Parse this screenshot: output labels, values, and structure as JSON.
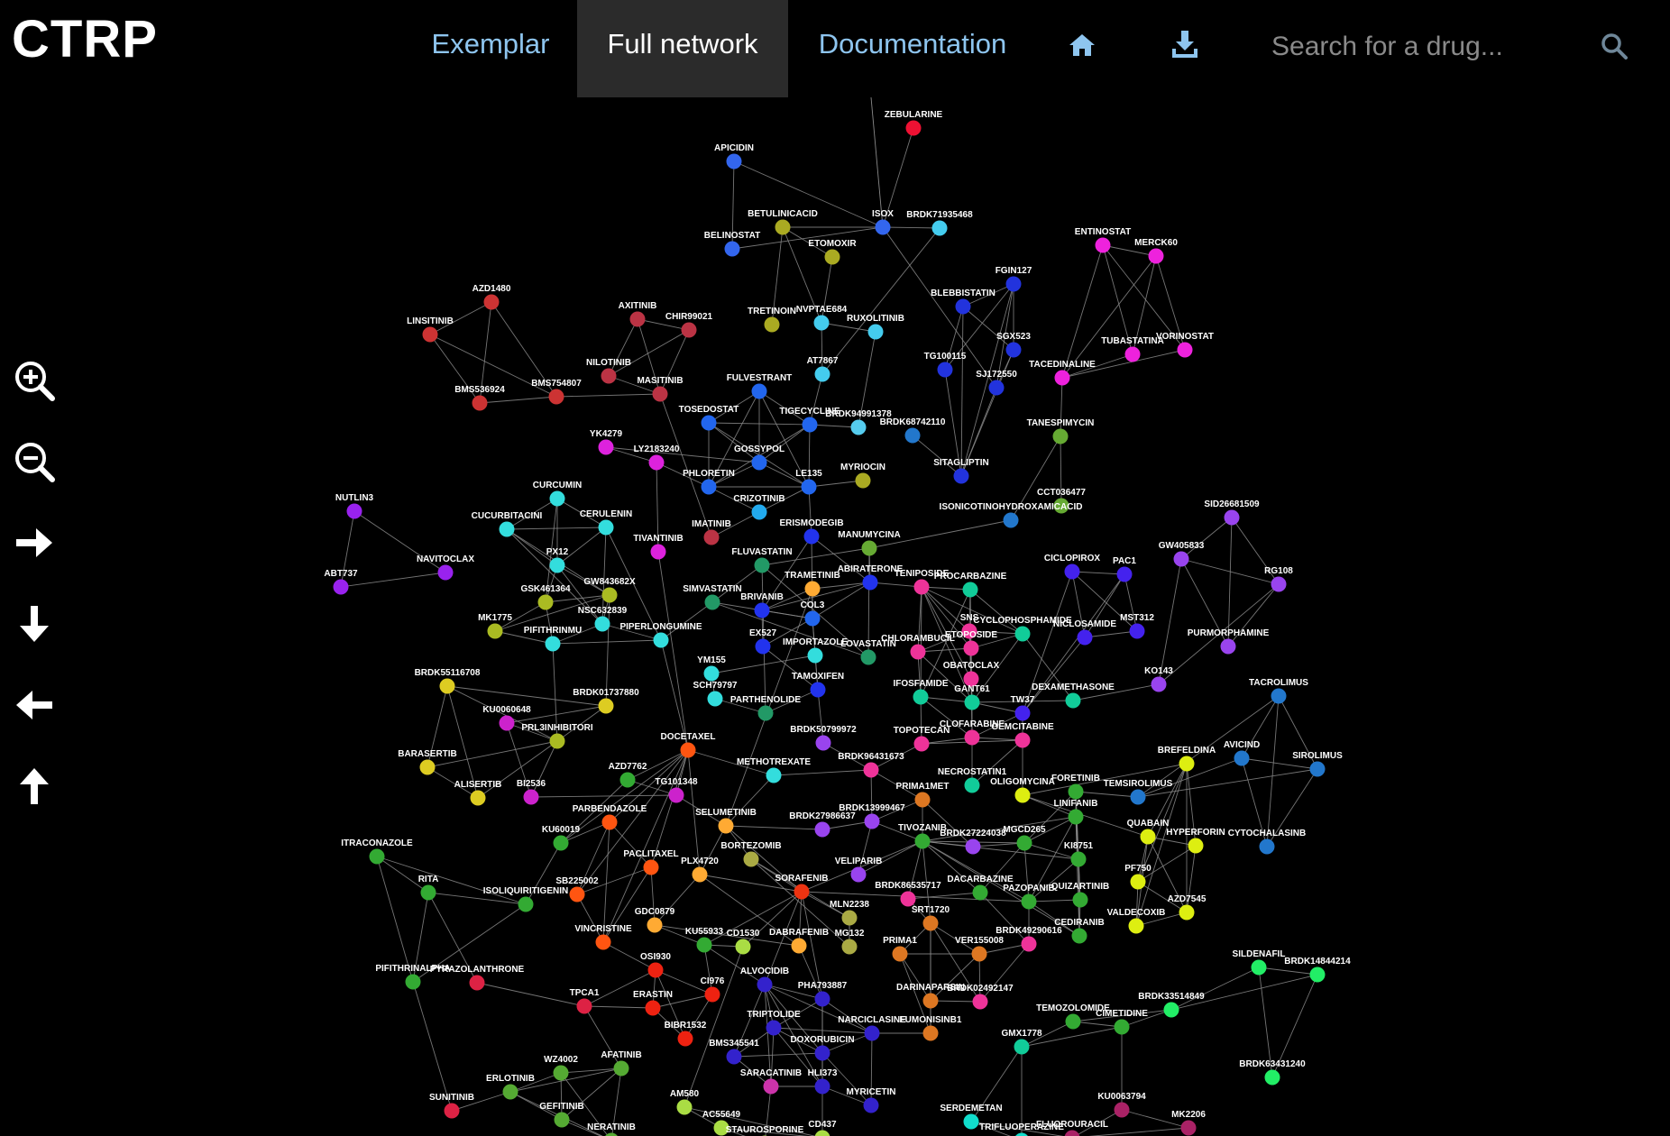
{
  "app": {
    "title": "CTRP"
  },
  "nav": {
    "exemplar": "Exemplar",
    "full_network": "Full network",
    "documentation": "Documentation"
  },
  "search": {
    "placeholder": "Search for a drug..."
  },
  "icons": {
    "home": "home-icon",
    "download": "download-icon",
    "search": "search-icon",
    "zoom_in": "zoom-in-icon",
    "zoom_out": "zoom-out-icon",
    "pan_right": "arrow-right-icon",
    "pan_down": "arrow-down-icon",
    "pan_left": "arrow-left-icon",
    "pan_up": "arrow-up-icon"
  },
  "colors": {
    "link": "#8ec5ef",
    "active_tab_bg": "#2b2b2b",
    "edge": "#8a8a8a"
  },
  "network": {
    "nodes": [
      {
        "id": "ZEBULARINE",
        "color": "#ee1133"
      },
      {
        "id": "APICIDIN",
        "color": "#3366ee"
      },
      {
        "id": "BETULINICACID",
        "color": "#aaaa22"
      },
      {
        "id": "ISOX",
        "color": "#3366ee"
      },
      {
        "id": "BRDK71935468",
        "color": "#44ccee"
      },
      {
        "id": "BELINOSTAT",
        "color": "#3366ee"
      },
      {
        "id": "ETOMOXIR",
        "color": "#aaaa22"
      },
      {
        "id": "ENTINOSTAT",
        "color": "#ee22dd"
      },
      {
        "id": "MERCK60",
        "color": "#ee22dd"
      },
      {
        "id": "AZD1480",
        "color": "#cc3333"
      },
      {
        "id": "LINSITINIB",
        "color": "#cc3333"
      },
      {
        "id": "BMS536924",
        "color": "#cc3333"
      },
      {
        "id": "BMS754807",
        "color": "#cc3333"
      },
      {
        "id": "AXITINIB",
        "color": "#bb3344"
      },
      {
        "id": "CHIR99021",
        "color": "#bb3344"
      },
      {
        "id": "NILOTINIB",
        "color": "#bb3344"
      },
      {
        "id": "MASITINIB",
        "color": "#bb3344"
      },
      {
        "id": "TRETINOIN",
        "color": "#aaaa22"
      },
      {
        "id": "NVPTAE684",
        "color": "#44ccee"
      },
      {
        "id": "RUXOLITINIB",
        "color": "#44ccee"
      },
      {
        "id": "FGIN127",
        "color": "#2233dd"
      },
      {
        "id": "BLEBBISTATIN",
        "color": "#2233dd"
      },
      {
        "id": "SGX523",
        "color": "#2233dd"
      },
      {
        "id": "TG100115",
        "color": "#2233dd"
      },
      {
        "id": "SJ172550",
        "color": "#2233dd"
      },
      {
        "id": "TUBASTATINA",
        "color": "#ee22dd"
      },
      {
        "id": "VORINOSTAT",
        "color": "#ee22dd"
      },
      {
        "id": "TACEDINALINE",
        "color": "#ee22dd"
      },
      {
        "id": "AT7867",
        "color": "#44ccee"
      },
      {
        "id": "FULVESTRANT",
        "color": "#2266ee"
      },
      {
        "id": "TOSEDOSTAT",
        "color": "#2266ee"
      },
      {
        "id": "TIGECYCLINE",
        "color": "#2266ee"
      },
      {
        "id": "BRDK94991378",
        "color": "#55ccee"
      },
      {
        "id": "BRDK68742110",
        "color": "#2277cc"
      },
      {
        "id": "TANESPIMYCIN",
        "color": "#66aa33"
      },
      {
        "id": "YK4279",
        "color": "#dd22dd"
      },
      {
        "id": "LY2183240",
        "color": "#dd22dd"
      },
      {
        "id": "GOSSYPOL",
        "color": "#2266ee"
      },
      {
        "id": "PHLORETIN",
        "color": "#2266ee"
      },
      {
        "id": "LE135",
        "color": "#2266ee"
      },
      {
        "id": "MYRIOCIN",
        "color": "#aaaa22"
      },
      {
        "id": "SITAGLIPTIN",
        "color": "#2233dd"
      },
      {
        "id": "CCT036477",
        "color": "#66aa33"
      },
      {
        "id": "ISONICOTINOHYDROXAMICACID",
        "color": "#2277cc"
      },
      {
        "id": "SID26681509",
        "color": "#9944ee"
      },
      {
        "id": "NUTLIN3",
        "color": "#9922ee"
      },
      {
        "id": "CURCUMIN",
        "color": "#33dddd"
      },
      {
        "id": "CUCURBITACINI",
        "color": "#33dddd"
      },
      {
        "id": "CERULENIN",
        "color": "#33dddd"
      },
      {
        "id": "CRIZOTINIB",
        "color": "#22aaee"
      },
      {
        "id": "IMATINIB",
        "color": "#bb3344"
      },
      {
        "id": "TIVANTINIB",
        "color": "#dd22dd"
      },
      {
        "id": "ERISMODEGIB",
        "color": "#2233ee"
      },
      {
        "id": "MANUMYCINA",
        "color": "#66aa33"
      },
      {
        "id": "GW405833",
        "color": "#9944ee"
      },
      {
        "id": "RG108",
        "color": "#9944ee"
      },
      {
        "id": "NAVITOCLAX",
        "color": "#9922ee"
      },
      {
        "id": "ABT737",
        "color": "#9922ee"
      },
      {
        "id": "PX12",
        "color": "#33dddd"
      },
      {
        "id": "FLUVASTATIN",
        "color": "#229966"
      },
      {
        "id": "ABIRATERONE",
        "color": "#2233ee"
      },
      {
        "id": "TRAMETINIB",
        "color": "#ffaa33"
      },
      {
        "id": "TENIPOSIDE",
        "color": "#ee3399"
      },
      {
        "id": "PROCARBAZINE",
        "color": "#11cc99"
      },
      {
        "id": "CICLOPIROX",
        "color": "#4422ee"
      },
      {
        "id": "PAC1",
        "color": "#4422ee"
      },
      {
        "id": "GSK461364",
        "color": "#aabb22"
      },
      {
        "id": "GW843682X",
        "color": "#aabb22"
      },
      {
        "id": "NSC632839",
        "color": "#33dddd"
      },
      {
        "id": "SIMVASTATIN",
        "color": "#229966"
      },
      {
        "id": "BRIVANIB",
        "color": "#2233ee"
      },
      {
        "id": "COL3",
        "color": "#2266ee"
      },
      {
        "id": "SNS",
        "color": "#ee3399"
      },
      {
        "id": "CYCLOPHOSPHAMIDE",
        "color": "#11cc99"
      },
      {
        "id": "NICLOSAMIDE",
        "color": "#4422ee"
      },
      {
        "id": "MST312",
        "color": "#4422ee"
      },
      {
        "id": "MK1775",
        "color": "#aabb22"
      },
      {
        "id": "PIFITHRINMU",
        "color": "#33dddd"
      },
      {
        "id": "PIPERLONGUMINE",
        "color": "#33dddd"
      },
      {
        "id": "EX527",
        "color": "#2233ee"
      },
      {
        "id": "IMPORTAZOLE",
        "color": "#33dddd"
      },
      {
        "id": "LOVASTATIN",
        "color": "#229966"
      },
      {
        "id": "CHLORAMBUCIL",
        "color": "#ee3399"
      },
      {
        "id": "ETOPOSIDE",
        "color": "#ee3399"
      },
      {
        "id": "PURMORPHAMINE",
        "color": "#9944ee"
      },
      {
        "id": "BRDK55116708",
        "color": "#ddcc22"
      },
      {
        "id": "YM155",
        "color": "#33dddd"
      },
      {
        "id": "KO143",
        "color": "#9944ee"
      },
      {
        "id": "TACROLIMUS",
        "color": "#2277cc"
      },
      {
        "id": "SCH79797",
        "color": "#33dddd"
      },
      {
        "id": "TAMOXIFEN",
        "color": "#2233ee"
      },
      {
        "id": "OBATOCLAX",
        "color": "#ee3399"
      },
      {
        "id": "DEXAMETHASONE",
        "color": "#11cc99"
      },
      {
        "id": "BRDK01737880",
        "color": "#ddcc22"
      },
      {
        "id": "KU0060648",
        "color": "#cc22cc"
      },
      {
        "id": "PARTHENOLIDE",
        "color": "#229966"
      },
      {
        "id": "IFOSFAMIDE",
        "color": "#11cc99"
      },
      {
        "id": "GANT61",
        "color": "#11cc99"
      },
      {
        "id": "TW37",
        "color": "#4422ee"
      },
      {
        "id": "PRL3INHIBITORI",
        "color": "#aabb22"
      },
      {
        "id": "BRDK50799972",
        "color": "#9944ee"
      },
      {
        "id": "TOPOTECAN",
        "color": "#ee3399"
      },
      {
        "id": "CLOFARABINE",
        "color": "#ee3399"
      },
      {
        "id": "GEMCITABINE",
        "color": "#ee3399"
      },
      {
        "id": "DOCETAXEL",
        "color": "#ff5511"
      },
      {
        "id": "BREFELDINA",
        "color": "#ddee11"
      },
      {
        "id": "AVICIND",
        "color": "#2277cc"
      },
      {
        "id": "SIROLIMUS",
        "color": "#2277cc"
      },
      {
        "id": "BARASERTIB",
        "color": "#ddcc22"
      },
      {
        "id": "BRDK96431673",
        "color": "#ee3399"
      },
      {
        "id": "AZD7762",
        "color": "#33aa33"
      },
      {
        "id": "METHOTREXATE",
        "color": "#33dddd"
      },
      {
        "id": "NECROSTATIN1",
        "color": "#11cc99"
      },
      {
        "id": "FORETINIB",
        "color": "#33aa33"
      },
      {
        "id": "ALISERTIB",
        "color": "#ddcc22"
      },
      {
        "id": "BI2536",
        "color": "#cc22cc"
      },
      {
        "id": "TG101348",
        "color": "#cc22cc"
      },
      {
        "id": "OLIGOMYCINA",
        "color": "#ddee11"
      },
      {
        "id": "PRIMA1MET",
        "color": "#dd7722"
      },
      {
        "id": "TEMSIROLIMUS",
        "color": "#2277cc"
      },
      {
        "id": "LINIFANIB",
        "color": "#33aa33"
      },
      {
        "id": "PARBENDAZOLE",
        "color": "#ff5511"
      },
      {
        "id": "BRDK13999467",
        "color": "#9944ee"
      },
      {
        "id": "SELUMETINIB",
        "color": "#ffaa33"
      },
      {
        "id": "BRDK27986637",
        "color": "#9944ee"
      },
      {
        "id": "QUABAIN",
        "color": "#ddee11"
      },
      {
        "id": "HYPERFORIN",
        "color": "#ddee11"
      },
      {
        "id": "KU60019",
        "color": "#33aa33"
      },
      {
        "id": "TIVOZANIB",
        "color": "#33aa33"
      },
      {
        "id": "BRDK27224038",
        "color": "#9944ee"
      },
      {
        "id": "MGCD265",
        "color": "#33aa33"
      },
      {
        "id": "ITRACONAZOLE",
        "color": "#33aa33"
      },
      {
        "id": "BORTEZOMIB",
        "color": "#aaaa44"
      },
      {
        "id": "KI8751",
        "color": "#33aa33"
      },
      {
        "id": "CYTOCHALASINB",
        "color": "#2277cc"
      },
      {
        "id": "PACLITAXEL",
        "color": "#ff5511"
      },
      {
        "id": "PLX4720",
        "color": "#ffaa33"
      },
      {
        "id": "VELIPARIB",
        "color": "#9944ee"
      },
      {
        "id": "PF750",
        "color": "#ddee11"
      },
      {
        "id": "RITA",
        "color": "#33aa33"
      },
      {
        "id": "SB225002",
        "color": "#ff5511"
      },
      {
        "id": "SORAFENIB",
        "color": "#ee3311"
      },
      {
        "id": "DACARBAZINE",
        "color": "#33aa33"
      },
      {
        "id": "ISOLIQUIRITIGENIN",
        "color": "#33aa33"
      },
      {
        "id": "BRDK86535717",
        "color": "#ee3399"
      },
      {
        "id": "PAZOPANIB",
        "color": "#33aa33"
      },
      {
        "id": "QUIZARTINIB",
        "color": "#33aa33"
      },
      {
        "id": "AZD7545",
        "color": "#ddee11"
      },
      {
        "id": "MLN2238",
        "color": "#aaaa44"
      },
      {
        "id": "SRT1720",
        "color": "#dd7722"
      },
      {
        "id": "VALDECOXIB",
        "color": "#ddee11"
      },
      {
        "id": "GDC0879",
        "color": "#ffaa33"
      },
      {
        "id": "BRDK49290616",
        "color": "#ee3399"
      },
      {
        "id": "CEDIRANIB",
        "color": "#33aa33"
      },
      {
        "id": "VINCRISTINE",
        "color": "#ff5511"
      },
      {
        "id": "KU55933",
        "color": "#33aa33"
      },
      {
        "id": "CD1530",
        "color": "#aadd44"
      },
      {
        "id": "DABRAFENIB",
        "color": "#ffaa33"
      },
      {
        "id": "MG132",
        "color": "#aaaa44"
      },
      {
        "id": "PRIMA1",
        "color": "#dd7722"
      },
      {
        "id": "VER155008",
        "color": "#dd7722"
      },
      {
        "id": "OSI930",
        "color": "#ee2211"
      },
      {
        "id": "PIFITHRINALPHA",
        "color": "#33aa33"
      },
      {
        "id": "PYRAZOLANTHRONE",
        "color": "#dd2244"
      },
      {
        "id": "ALVOCIDIB",
        "color": "#3322cc"
      },
      {
        "id": "CI976",
        "color": "#ee2211"
      },
      {
        "id": "SILDENAFIL",
        "color": "#22ee66"
      },
      {
        "id": "BRDK14844214",
        "color": "#22ee66"
      },
      {
        "id": "DARINAPARSIN",
        "color": "#dd7722"
      },
      {
        "id": "BRDK02492147",
        "color": "#ee3399"
      },
      {
        "id": "PHA793887",
        "color": "#3322cc"
      },
      {
        "id": "TPCA1",
        "color": "#dd2244"
      },
      {
        "id": "ERASTIN",
        "color": "#ee2211"
      },
      {
        "id": "BRDK33514849",
        "color": "#22ee66"
      },
      {
        "id": "TEMOZOLOMIDE",
        "color": "#33aa33"
      },
      {
        "id": "CIMETIDINE",
        "color": "#33aa33"
      },
      {
        "id": "TRIPTOLIDE",
        "color": "#3322cc"
      },
      {
        "id": "NARCICLASINE",
        "color": "#3322cc"
      },
      {
        "id": "FUMONISINB1",
        "color": "#dd7722"
      },
      {
        "id": "BIBR1532",
        "color": "#ee2211"
      },
      {
        "id": "GMX1778",
        "color": "#11cc99"
      },
      {
        "id": "DOXORUBICIN",
        "color": "#3322cc"
      },
      {
        "id": "BMS345541",
        "color": "#3322cc"
      },
      {
        "id": "WZ4002",
        "color": "#55aa33"
      },
      {
        "id": "AFATINIB",
        "color": "#55aa33"
      },
      {
        "id": "BRDK63431240",
        "color": "#22ee66"
      },
      {
        "id": "SARACATINIB",
        "color": "#cc33aa"
      },
      {
        "id": "HLI373",
        "color": "#3322cc"
      },
      {
        "id": "ERLOTINIB",
        "color": "#55aa33"
      },
      {
        "id": "AM580",
        "color": "#aadd44"
      },
      {
        "id": "MYRICETIN",
        "color": "#3322cc"
      },
      {
        "id": "KU0063794",
        "color": "#aa2266"
      },
      {
        "id": "SUNITINIB",
        "color": "#dd2244"
      },
      {
        "id": "GEFITINIB",
        "color": "#55aa33"
      },
      {
        "id": "SERDEMETAN",
        "color": "#11ddcc"
      },
      {
        "id": "MK2206",
        "color": "#aa2266"
      },
      {
        "id": "AC55649",
        "color": "#aadd44"
      },
      {
        "id": "FLUOROURACIL",
        "color": "#aa2266"
      },
      {
        "id": "TRIFLUOPERAZINE",
        "color": "#11ddcc"
      },
      {
        "id": "CD437",
        "color": "#aadd44"
      },
      {
        "id": "NERATINIB",
        "color": "#55aa33"
      },
      {
        "id": "STAUROSPORINE",
        "color": "#aadd44"
      }
    ]
  }
}
